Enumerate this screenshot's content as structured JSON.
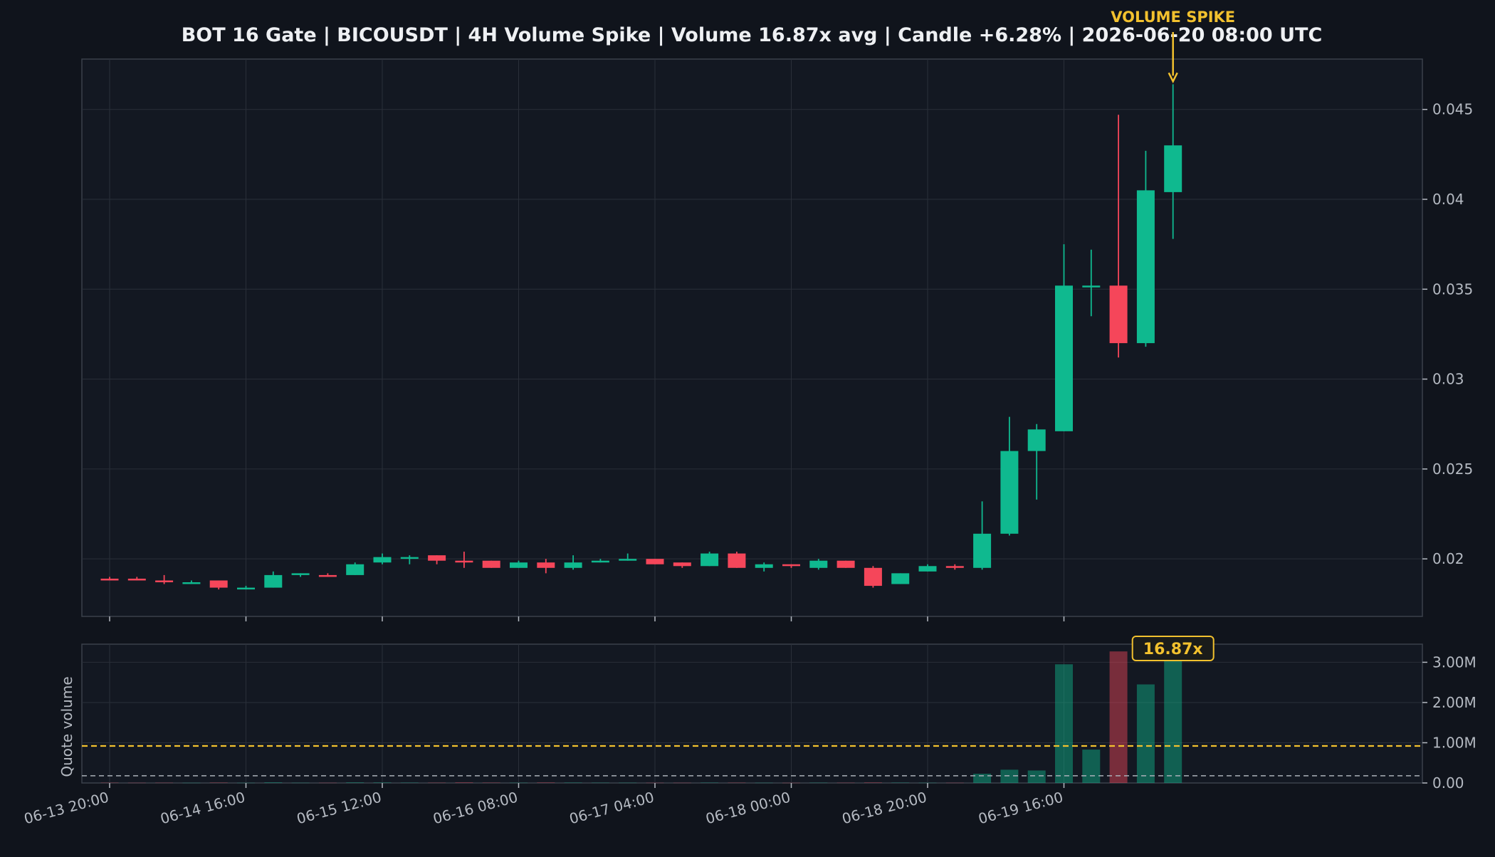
{
  "chart_data": {
    "type": "candlestick",
    "title": "BOT 16 Gate | BICOUSDT | 4H Volume Spike | Volume 16.87x avg | Candle +6.28% | 2026-06-20 08:00 UTC",
    "x_tick_labels": [
      "06-13 20:00",
      "06-14 16:00",
      "06-15 12:00",
      "06-16 08:00",
      "06-17 04:00",
      "06-18 00:00",
      "06-18 20:00",
      "06-19 16:00"
    ],
    "price_axis": {
      "ticks": [
        0.02,
        0.025,
        0.03,
        0.035,
        0.04,
        0.045
      ],
      "tick_labels": [
        "0.02",
        "0.025",
        "0.03",
        "0.035",
        "0.04",
        "0.045"
      ],
      "range": [
        0.0168,
        0.0478
      ]
    },
    "volume_axis": {
      "label": "Quote volume",
      "ticks": [
        0,
        1000000,
        2000000,
        3000000
      ],
      "tick_labels": [
        "0.00",
        "1.00M",
        "2.00M",
        "3.00M"
      ],
      "range": [
        0,
        3450000
      ]
    },
    "grid": true,
    "colors": {
      "up": "#0fb98f",
      "down": "#f5465a",
      "highlight": "#f2c12e",
      "background": "#10141c",
      "panel": "#131822",
      "text": "#eef0f3",
      "axis_text": "#b5bac2"
    },
    "avg_volume_line": 920000,
    "baseline_volume_line": 180000,
    "annotations": {
      "spike_label": "VOLUME SPIKE",
      "ratio_label": "16.87x"
    },
    "candles": [
      {
        "o": 0.0189,
        "h": 0.019,
        "l": 0.0188,
        "c": 0.0188,
        "v": 8000
      },
      {
        "o": 0.0189,
        "h": 0.019,
        "l": 0.0188,
        "c": 0.0188,
        "v": 6000
      },
      {
        "o": 0.0188,
        "h": 0.0191,
        "l": 0.0186,
        "c": 0.0187,
        "v": 7000
      },
      {
        "o": 0.0187,
        "h": 0.0188,
        "l": 0.0186,
        "c": 0.0187,
        "v": 5000
      },
      {
        "o": 0.0188,
        "h": 0.0188,
        "l": 0.0183,
        "c": 0.0184,
        "v": 10000
      },
      {
        "o": 0.0184,
        "h": 0.0185,
        "l": 0.0183,
        "c": 0.0184,
        "v": 5000
      },
      {
        "o": 0.0184,
        "h": 0.0193,
        "l": 0.0184,
        "c": 0.0191,
        "v": 15000
      },
      {
        "o": 0.0191,
        "h": 0.0192,
        "l": 0.019,
        "c": 0.0192,
        "v": 6000
      },
      {
        "o": 0.0191,
        "h": 0.0192,
        "l": 0.019,
        "c": 0.019,
        "v": 6000
      },
      {
        "o": 0.0191,
        "h": 0.0198,
        "l": 0.0191,
        "c": 0.0197,
        "v": 14000
      },
      {
        "o": 0.0198,
        "h": 0.0203,
        "l": 0.0197,
        "c": 0.0201,
        "v": 12000
      },
      {
        "o": 0.0201,
        "h": 0.0202,
        "l": 0.0197,
        "c": 0.0201,
        "v": 9000
      },
      {
        "o": 0.0202,
        "h": 0.0202,
        "l": 0.0197,
        "c": 0.0199,
        "v": 8000
      },
      {
        "o": 0.0199,
        "h": 0.0204,
        "l": 0.0195,
        "c": 0.0198,
        "v": 14000
      },
      {
        "o": 0.0199,
        "h": 0.0199,
        "l": 0.0195,
        "c": 0.0195,
        "v": 9000
      },
      {
        "o": 0.0195,
        "h": 0.0199,
        "l": 0.0195,
        "c": 0.0198,
        "v": 7000
      },
      {
        "o": 0.0198,
        "h": 0.02,
        "l": 0.0192,
        "c": 0.0195,
        "v": 12000
      },
      {
        "o": 0.0195,
        "h": 0.0202,
        "l": 0.0194,
        "c": 0.0198,
        "v": 10000
      },
      {
        "o": 0.0198,
        "h": 0.02,
        "l": 0.0198,
        "c": 0.0199,
        "v": 8000
      },
      {
        "o": 0.0199,
        "h": 0.0203,
        "l": 0.0199,
        "c": 0.02,
        "v": 7000
      },
      {
        "o": 0.02,
        "h": 0.02,
        "l": 0.0197,
        "c": 0.0197,
        "v": 6000
      },
      {
        "o": 0.0198,
        "h": 0.0198,
        "l": 0.0195,
        "c": 0.0196,
        "v": 6000
      },
      {
        "o": 0.0196,
        "h": 0.0204,
        "l": 0.0196,
        "c": 0.0203,
        "v": 9000
      },
      {
        "o": 0.0203,
        "h": 0.0204,
        "l": 0.0195,
        "c": 0.0195,
        "v": 8000
      },
      {
        "o": 0.0195,
        "h": 0.0198,
        "l": 0.0193,
        "c": 0.0197,
        "v": 6000
      },
      {
        "o": 0.0197,
        "h": 0.0197,
        "l": 0.0195,
        "c": 0.0196,
        "v": 5000
      },
      {
        "o": 0.0195,
        "h": 0.02,
        "l": 0.0194,
        "c": 0.0199,
        "v": 8000
      },
      {
        "o": 0.0199,
        "h": 0.0199,
        "l": 0.0195,
        "c": 0.0195,
        "v": 7000
      },
      {
        "o": 0.0195,
        "h": 0.0196,
        "l": 0.0184,
        "c": 0.0185,
        "v": 12000
      },
      {
        "o": 0.0186,
        "h": 0.0192,
        "l": 0.0186,
        "c": 0.0192,
        "v": 9000
      },
      {
        "o": 0.0193,
        "h": 0.0197,
        "l": 0.0193,
        "c": 0.0196,
        "v": 6000
      },
      {
        "o": 0.0196,
        "h": 0.0197,
        "l": 0.0194,
        "c": 0.0195,
        "v": 6000
      },
      {
        "o": 0.0195,
        "h": 0.0232,
        "l": 0.0194,
        "c": 0.0214,
        "v": 230000
      },
      {
        "o": 0.0214,
        "h": 0.0279,
        "l": 0.0213,
        "c": 0.026,
        "v": 330000
      },
      {
        "o": 0.026,
        "h": 0.0275,
        "l": 0.0233,
        "c": 0.0272,
        "v": 310000
      },
      {
        "o": 0.0271,
        "h": 0.0375,
        "l": 0.0271,
        "c": 0.0352,
        "v": 2950000
      },
      {
        "o": 0.0351,
        "h": 0.0372,
        "l": 0.0335,
        "c": 0.0352,
        "v": 830000
      },
      {
        "o": 0.0352,
        "h": 0.0447,
        "l": 0.0312,
        "c": 0.032,
        "v": 3270000
      },
      {
        "o": 0.032,
        "h": 0.0427,
        "l": 0.0318,
        "c": 0.0405,
        "v": 2450000
      },
      {
        "o": 0.0404,
        "h": 0.0464,
        "l": 0.0378,
        "c": 0.043,
        "v": 3100000
      }
    ]
  }
}
